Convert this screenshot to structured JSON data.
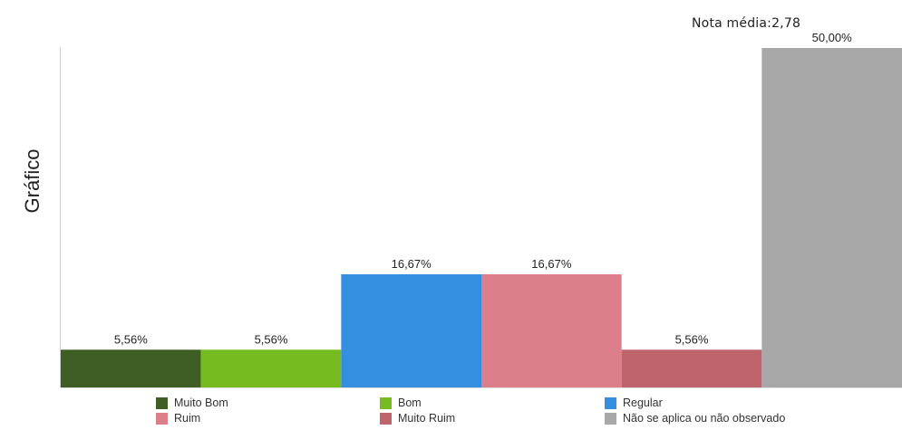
{
  "header": {
    "nota_media": "Nota média:2,78"
  },
  "chart_data": {
    "type": "bar",
    "title": "",
    "ylabel": "Gráfico",
    "xlabel": "",
    "ylim": [
      0,
      50
    ],
    "grid": false,
    "legend_position": "bottom",
    "categories": [
      "Muito Bom",
      "Bom",
      "Regular",
      "Ruim",
      "Muito Ruim",
      "Não se aplica ou não observado"
    ],
    "values": [
      5.56,
      5.56,
      16.67,
      16.67,
      5.56,
      50.0
    ],
    "labels": [
      "5,56%",
      "5,56%",
      "16,67%",
      "16,67%",
      "5,56%",
      "50,00%"
    ],
    "colors": [
      "#3f5e23",
      "#76bc21",
      "#358fe0",
      "#dd7f8b",
      "#bf636c",
      "#a8a8a8"
    ]
  }
}
